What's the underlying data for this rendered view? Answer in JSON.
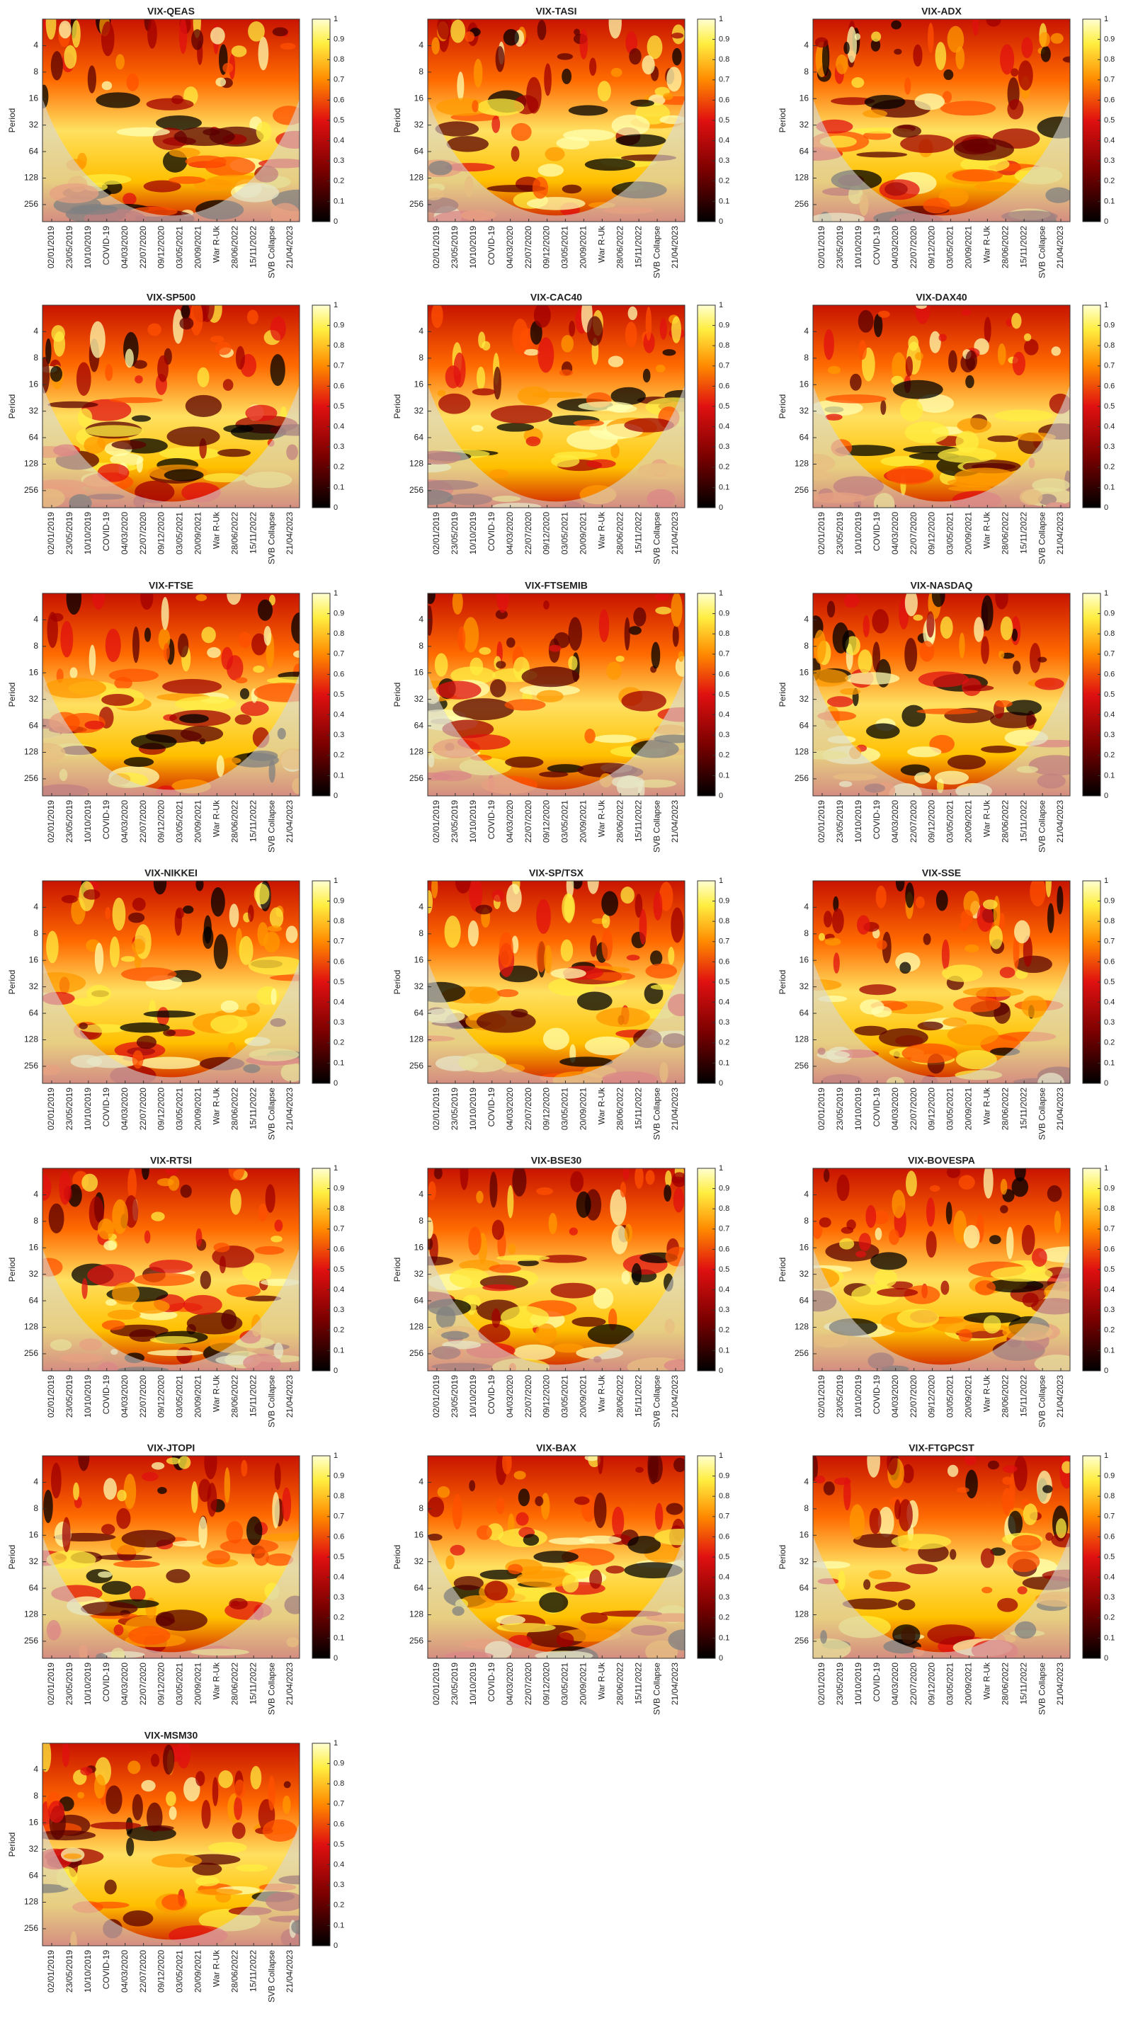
{
  "chart_data": [
    {
      "type": "heatmap",
      "title": "VIX-QEAS",
      "ylabel": "Period",
      "yscale": "log",
      "y_reversed": true,
      "ylim": [
        2,
        400
      ],
      "yticks": [
        4,
        8,
        16,
        32,
        64,
        128,
        256
      ],
      "categories": [
        "02/01/2019",
        "23/05/2019",
        "10/10/2019",
        "COVID-19",
        "04/03/2020",
        "22/07/2020",
        "09/12/2020",
        "03/05/2021",
        "20/09/2021",
        "War R-Uk",
        "28/06/2022",
        "15/11/2022",
        "SVB Collapse",
        "21/04/2023"
      ],
      "colorbar_lim": [
        0,
        1
      ],
      "colorbar_ticks": [
        0,
        0.1,
        0.2,
        0.3,
        0.4,
        0.5,
        0.6,
        0.7,
        0.8,
        0.9,
        1
      ]
    },
    {
      "type": "heatmap",
      "title": "VIX-TASI",
      "ylabel": "Period",
      "yscale": "log",
      "y_reversed": true,
      "ylim": [
        2,
        400
      ],
      "yticks": [
        4,
        8,
        16,
        32,
        64,
        128,
        256
      ],
      "categories": [
        "02/01/2019",
        "23/05/2019",
        "10/10/2019",
        "COVID-19",
        "04/03/2020",
        "22/07/2020",
        "09/12/2020",
        "03/05/2021",
        "20/09/2021",
        "War R-Uk",
        "28/06/2022",
        "15/11/2022",
        "SVB Collapse",
        "21/04/2023"
      ],
      "colorbar_lim": [
        0,
        1
      ],
      "colorbar_ticks": [
        0,
        0.1,
        0.2,
        0.3,
        0.4,
        0.5,
        0.6,
        0.7,
        0.8,
        0.9,
        1
      ]
    },
    {
      "type": "heatmap",
      "title": "VIX-ADX",
      "ylabel": "Period",
      "yscale": "log",
      "y_reversed": true,
      "ylim": [
        2,
        400
      ],
      "yticks": [
        4,
        8,
        16,
        32,
        64,
        128,
        256
      ],
      "categories": [
        "02/01/2019",
        "23/05/2019",
        "10/10/2019",
        "COVID-19",
        "04/03/2020",
        "22/07/2020",
        "09/12/2020",
        "03/05/2021",
        "20/09/2021",
        "War R-Uk",
        "28/06/2022",
        "15/11/2022",
        "SVB Collapse",
        "21/04/2023"
      ],
      "colorbar_lim": [
        0,
        1
      ],
      "colorbar_ticks": [
        0,
        0.1,
        0.2,
        0.3,
        0.4,
        0.5,
        0.6,
        0.7,
        0.8,
        0.9,
        1
      ]
    },
    {
      "type": "heatmap",
      "title": "VIX-SP500",
      "ylabel": "Period",
      "yscale": "log",
      "y_reversed": true,
      "ylim": [
        2,
        400
      ],
      "yticks": [
        4,
        8,
        16,
        32,
        64,
        128,
        256
      ],
      "categories": [
        "02/01/2019",
        "23/05/2019",
        "10/10/2019",
        "COVID-19",
        "04/03/2020",
        "22/07/2020",
        "09/12/2020",
        "03/05/2021",
        "20/09/2021",
        "War R-Uk",
        "28/06/2022",
        "15/11/2022",
        "SVB Collapse",
        "21/04/2023"
      ],
      "colorbar_lim": [
        0,
        1
      ],
      "colorbar_ticks": [
        0,
        0.1,
        0.2,
        0.3,
        0.4,
        0.5,
        0.6,
        0.7,
        0.8,
        0.9,
        1
      ]
    },
    {
      "type": "heatmap",
      "title": "VIX-CAC40",
      "ylabel": "Period",
      "yscale": "log",
      "y_reversed": true,
      "ylim": [
        2,
        400
      ],
      "yticks": [
        4,
        8,
        16,
        32,
        64,
        128,
        256
      ],
      "categories": [
        "02/01/2019",
        "23/05/2019",
        "10/10/2019",
        "COVID-19",
        "04/03/2020",
        "22/07/2020",
        "09/12/2020",
        "03/05/2021",
        "20/09/2021",
        "War R-Uk",
        "28/06/2022",
        "15/11/2022",
        "SVB Collapse",
        "21/04/2023"
      ],
      "colorbar_lim": [
        0,
        1
      ],
      "colorbar_ticks": [
        0,
        0.1,
        0.2,
        0.3,
        0.4,
        0.5,
        0.6,
        0.7,
        0.8,
        0.9,
        1
      ]
    },
    {
      "type": "heatmap",
      "title": "VIX-DAX40",
      "ylabel": "Period",
      "yscale": "log",
      "y_reversed": true,
      "ylim": [
        2,
        400
      ],
      "yticks": [
        4,
        8,
        16,
        32,
        64,
        128,
        256
      ],
      "categories": [
        "02/01/2019",
        "23/05/2019",
        "10/10/2019",
        "COVID-19",
        "04/03/2020",
        "22/07/2020",
        "09/12/2020",
        "03/05/2021",
        "20/09/2021",
        "War R-Uk",
        "28/06/2022",
        "15/11/2022",
        "SVB Collapse",
        "21/04/2023"
      ],
      "colorbar_lim": [
        0,
        1
      ],
      "colorbar_ticks": [
        0,
        0.1,
        0.2,
        0.3,
        0.4,
        0.5,
        0.6,
        0.7,
        0.8,
        0.9,
        1
      ]
    },
    {
      "type": "heatmap",
      "title": "VIX-FTSE",
      "ylabel": "Period",
      "yscale": "log",
      "y_reversed": true,
      "ylim": [
        2,
        400
      ],
      "yticks": [
        4,
        8,
        16,
        32,
        64,
        128,
        256
      ],
      "categories": [
        "02/01/2019",
        "23/05/2019",
        "10/10/2019",
        "COVID-19",
        "04/03/2020",
        "22/07/2020",
        "09/12/2020",
        "03/05/2021",
        "20/09/2021",
        "War R-Uk",
        "28/06/2022",
        "15/11/2022",
        "SVB Collapse",
        "21/04/2023"
      ],
      "colorbar_lim": [
        0,
        1
      ],
      "colorbar_ticks": [
        0,
        0.1,
        0.2,
        0.3,
        0.4,
        0.5,
        0.6,
        0.7,
        0.8,
        0.9,
        1
      ]
    },
    {
      "type": "heatmap",
      "title": "VIX-FTSEMIB",
      "ylabel": "Period",
      "yscale": "log",
      "y_reversed": true,
      "ylim": [
        2,
        400
      ],
      "yticks": [
        4,
        8,
        16,
        32,
        64,
        128,
        256
      ],
      "categories": [
        "02/01/2019",
        "23/05/2019",
        "10/10/2019",
        "COVID-19",
        "04/03/2020",
        "22/07/2020",
        "09/12/2020",
        "03/05/2021",
        "20/09/2021",
        "War R-Uk",
        "28/06/2022",
        "15/11/2022",
        "SVB Collapse",
        "21/04/2023"
      ],
      "colorbar_lim": [
        0,
        1
      ],
      "colorbar_ticks": [
        0,
        0.1,
        0.2,
        0.3,
        0.4,
        0.5,
        0.6,
        0.7,
        0.8,
        0.9,
        1
      ]
    },
    {
      "type": "heatmap",
      "title": "VIX-NASDAQ",
      "ylabel": "Period",
      "yscale": "log",
      "y_reversed": true,
      "ylim": [
        2,
        400
      ],
      "yticks": [
        4,
        8,
        16,
        32,
        64,
        128,
        256
      ],
      "categories": [
        "02/01/2019",
        "23/05/2019",
        "10/10/2019",
        "COVID-19",
        "04/03/2020",
        "22/07/2020",
        "09/12/2020",
        "03/05/2021",
        "20/09/2021",
        "War R-Uk",
        "28/06/2022",
        "15/11/2022",
        "SVB Collapse",
        "21/04/2023"
      ],
      "colorbar_lim": [
        0,
        1
      ],
      "colorbar_ticks": [
        0,
        0.1,
        0.2,
        0.3,
        0.4,
        0.5,
        0.6,
        0.7,
        0.8,
        0.9,
        1
      ]
    },
    {
      "type": "heatmap",
      "title": "VIX-NIKKEI",
      "ylabel": "Period",
      "yscale": "log",
      "y_reversed": true,
      "ylim": [
        2,
        400
      ],
      "yticks": [
        4,
        8,
        16,
        32,
        64,
        128,
        256
      ],
      "categories": [
        "02/01/2019",
        "23/05/2019",
        "10/10/2019",
        "COVID-19",
        "04/03/2020",
        "22/07/2020",
        "09/12/2020",
        "03/05/2021",
        "20/09/2021",
        "War R-Uk",
        "28/06/2022",
        "15/11/2022",
        "SVB Collapse",
        "21/04/2023"
      ],
      "colorbar_lim": [
        0,
        1
      ],
      "colorbar_ticks": [
        0,
        0.1,
        0.2,
        0.3,
        0.4,
        0.5,
        0.6,
        0.7,
        0.8,
        0.9,
        1
      ]
    },
    {
      "type": "heatmap",
      "title": "VIX-SP/TSX",
      "ylabel": "Period",
      "yscale": "log",
      "y_reversed": true,
      "ylim": [
        2,
        400
      ],
      "yticks": [
        4,
        8,
        16,
        32,
        64,
        128,
        256
      ],
      "categories": [
        "02/01/2019",
        "23/05/2019",
        "10/10/2019",
        "COVID-19",
        "04/03/2020",
        "22/07/2020",
        "09/12/2020",
        "03/05/2021",
        "20/09/2021",
        "War R-Uk",
        "28/06/2022",
        "15/11/2022",
        "SVB Collapse",
        "21/04/2023"
      ],
      "colorbar_lim": [
        0,
        1
      ],
      "colorbar_ticks": [
        0,
        0.1,
        0.2,
        0.3,
        0.4,
        0.5,
        0.6,
        0.7,
        0.8,
        0.9,
        1
      ]
    },
    {
      "type": "heatmap",
      "title": "VIX-SSE",
      "ylabel": "Period",
      "yscale": "log",
      "y_reversed": true,
      "ylim": [
        2,
        400
      ],
      "yticks": [
        4,
        8,
        16,
        32,
        64,
        128,
        256
      ],
      "categories": [
        "02/01/2019",
        "23/05/2019",
        "10/10/2019",
        "COVID-19",
        "04/03/2020",
        "22/07/2020",
        "09/12/2020",
        "03/05/2021",
        "20/09/2021",
        "War R-Uk",
        "28/06/2022",
        "15/11/2022",
        "SVB Collapse",
        "21/04/2023"
      ],
      "colorbar_lim": [
        0,
        1
      ],
      "colorbar_ticks": [
        0,
        0.1,
        0.2,
        0.3,
        0.4,
        0.5,
        0.6,
        0.7,
        0.8,
        0.9,
        1
      ]
    },
    {
      "type": "heatmap",
      "title": "VIX-RTSI",
      "ylabel": "Period",
      "yscale": "log",
      "y_reversed": true,
      "ylim": [
        2,
        400
      ],
      "yticks": [
        4,
        8,
        16,
        32,
        64,
        128,
        256
      ],
      "categories": [
        "02/01/2019",
        "23/05/2019",
        "10/10/2019",
        "COVID-19",
        "04/03/2020",
        "22/07/2020",
        "09/12/2020",
        "03/05/2021",
        "20/09/2021",
        "War R-Uk",
        "28/06/2022",
        "15/11/2022",
        "SVB Collapse",
        "21/04/2023"
      ],
      "colorbar_lim": [
        0,
        1
      ],
      "colorbar_ticks": [
        0,
        0.1,
        0.2,
        0.3,
        0.4,
        0.5,
        0.6,
        0.7,
        0.8,
        0.9,
        1
      ]
    },
    {
      "type": "heatmap",
      "title": "VIX-BSE30",
      "ylabel": "Period",
      "yscale": "log",
      "y_reversed": true,
      "ylim": [
        2,
        400
      ],
      "yticks": [
        4,
        8,
        16,
        32,
        64,
        128,
        256
      ],
      "categories": [
        "02/01/2019",
        "23/05/2019",
        "10/10/2019",
        "COVID-19",
        "04/03/2020",
        "22/07/2020",
        "09/12/2020",
        "03/05/2021",
        "20/09/2021",
        "War R-Uk",
        "28/06/2022",
        "15/11/2022",
        "SVB Collapse",
        "21/04/2023"
      ],
      "colorbar_lim": [
        0,
        1
      ],
      "colorbar_ticks": [
        0,
        0.1,
        0.2,
        0.3,
        0.4,
        0.5,
        0.6,
        0.7,
        0.8,
        0.9,
        1
      ]
    },
    {
      "type": "heatmap",
      "title": "VIX-BOVESPA",
      "ylabel": "Period",
      "yscale": "log",
      "y_reversed": true,
      "ylim": [
        2,
        400
      ],
      "yticks": [
        4,
        8,
        16,
        32,
        64,
        128,
        256
      ],
      "categories": [
        "02/01/2019",
        "23/05/2019",
        "10/10/2019",
        "COVID-19",
        "04/03/2020",
        "22/07/2020",
        "09/12/2020",
        "03/05/2021",
        "20/09/2021",
        "War R-Uk",
        "28/06/2022",
        "15/11/2022",
        "SVB Collapse",
        "21/04/2023"
      ],
      "colorbar_lim": [
        0,
        1
      ],
      "colorbar_ticks": [
        0,
        0.1,
        0.2,
        0.3,
        0.4,
        0.5,
        0.6,
        0.7,
        0.8,
        0.9,
        1
      ]
    },
    {
      "type": "heatmap",
      "title": "VIX-JTOPI",
      "ylabel": "Period",
      "yscale": "log",
      "y_reversed": true,
      "ylim": [
        2,
        400
      ],
      "yticks": [
        4,
        8,
        16,
        32,
        64,
        128,
        256
      ],
      "categories": [
        "02/01/2019",
        "23/05/2019",
        "10/10/2019",
        "COVID-19",
        "04/03/2020",
        "22/07/2020",
        "09/12/2020",
        "03/05/2021",
        "20/09/2021",
        "War R-Uk",
        "28/06/2022",
        "15/11/2022",
        "SVB Collapse",
        "21/04/2023"
      ],
      "colorbar_lim": [
        0,
        1
      ],
      "colorbar_ticks": [
        0,
        0.1,
        0.2,
        0.3,
        0.4,
        0.5,
        0.6,
        0.7,
        0.8,
        0.9,
        1
      ]
    },
    {
      "type": "heatmap",
      "title": "VIX-BAX",
      "ylabel": "Period",
      "yscale": "log",
      "y_reversed": true,
      "ylim": [
        2,
        400
      ],
      "yticks": [
        4,
        8,
        16,
        32,
        64,
        128,
        256
      ],
      "categories": [
        "02/01/2019",
        "23/05/2019",
        "10/10/2019",
        "COVID-19",
        "04/03/2020",
        "22/07/2020",
        "09/12/2020",
        "03/05/2021",
        "20/09/2021",
        "War R-Uk",
        "28/06/2022",
        "15/11/2022",
        "SVB Collapse",
        "21/04/2023"
      ],
      "colorbar_lim": [
        0,
        1
      ],
      "colorbar_ticks": [
        0,
        0.1,
        0.2,
        0.3,
        0.4,
        0.5,
        0.6,
        0.7,
        0.8,
        0.9,
        1
      ]
    },
    {
      "type": "heatmap",
      "title": "VIX-FTGPCST",
      "ylabel": "Period",
      "yscale": "log",
      "y_reversed": true,
      "ylim": [
        2,
        400
      ],
      "yticks": [
        4,
        8,
        16,
        32,
        64,
        128,
        256
      ],
      "categories": [
        "02/01/2019",
        "23/05/2019",
        "10/10/2019",
        "COVID-19",
        "04/03/2020",
        "22/07/2020",
        "09/12/2020",
        "03/05/2021",
        "20/09/2021",
        "War R-Uk",
        "28/06/2022",
        "15/11/2022",
        "SVB Collapse",
        "21/04/2023"
      ],
      "colorbar_lim": [
        0,
        1
      ],
      "colorbar_ticks": [
        0,
        0.1,
        0.2,
        0.3,
        0.4,
        0.5,
        0.6,
        0.7,
        0.8,
        0.9,
        1
      ]
    },
    {
      "type": "heatmap",
      "title": "VIX-MSM30",
      "ylabel": "Period",
      "yscale": "log",
      "y_reversed": true,
      "ylim": [
        2,
        400
      ],
      "yticks": [
        4,
        8,
        16,
        32,
        64,
        128,
        256
      ],
      "categories": [
        "02/01/2019",
        "23/05/2019",
        "10/10/2019",
        "COVID-19",
        "04/03/2020",
        "22/07/2020",
        "09/12/2020",
        "03/05/2021",
        "20/09/2021",
        "War R-Uk",
        "28/06/2022",
        "15/11/2022",
        "SVB Collapse",
        "21/04/2023"
      ],
      "colorbar_lim": [
        0,
        1
      ],
      "colorbar_ticks": [
        0,
        0.1,
        0.2,
        0.3,
        0.4,
        0.5,
        0.6,
        0.7,
        0.8,
        0.9,
        1
      ]
    }
  ]
}
